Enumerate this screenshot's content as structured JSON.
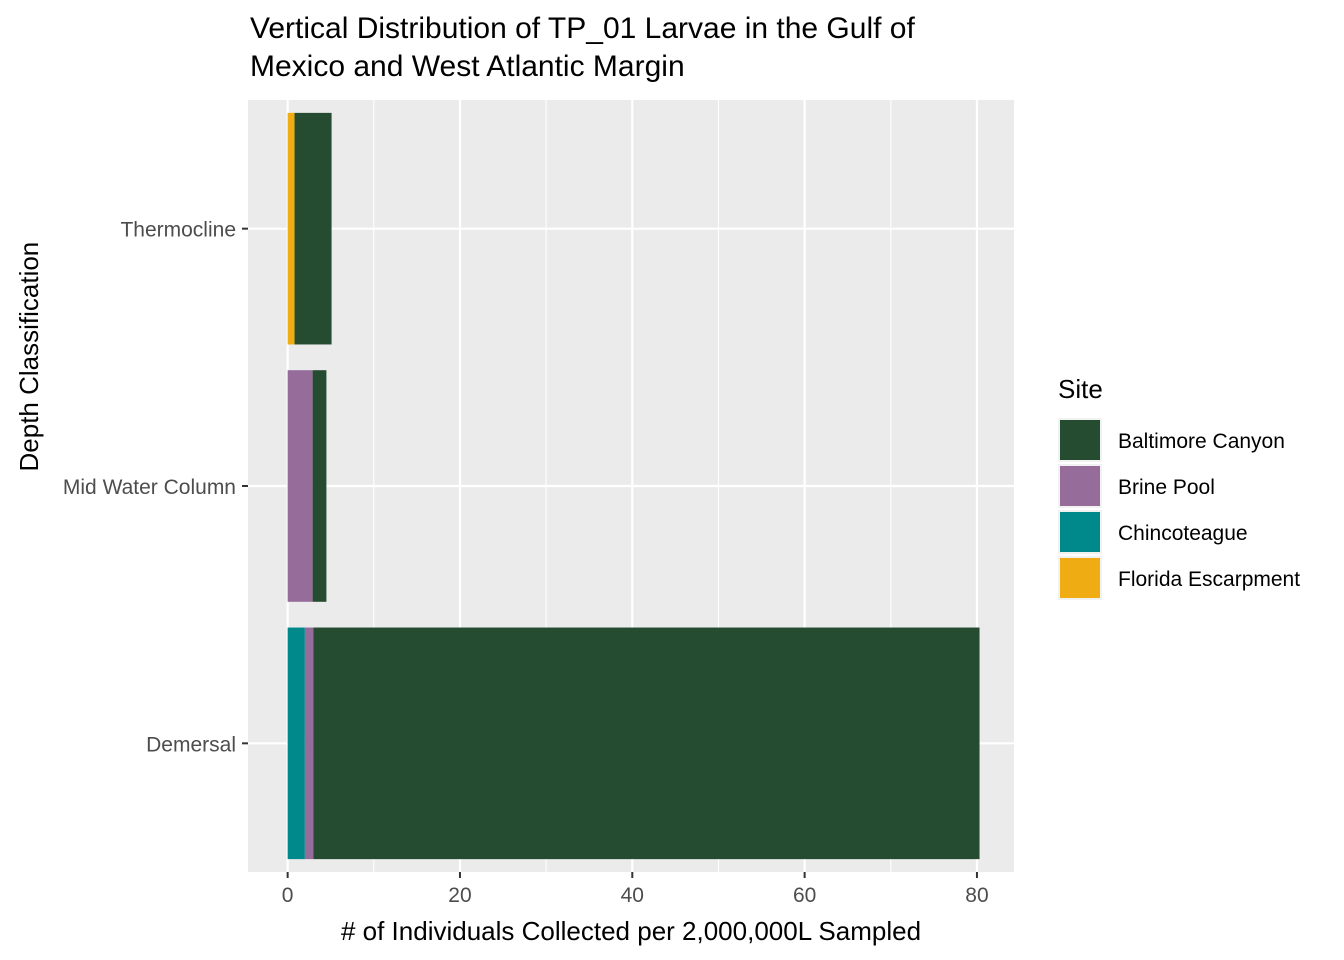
{
  "chart_data": {
    "type": "bar",
    "orientation": "horizontal",
    "stacked": true,
    "title": "Vertical Distribution of TP_01 Larvae in the Gulf of Mexico and West Atlantic Margin",
    "title_lines": [
      "Vertical Distribution of TP_01 Larvae in the Gulf of",
      "Mexico and West Atlantic Margin"
    ],
    "xlabel": "# of Individuals Collected per 2,000,000L Sampled",
    "ylabel": "Depth Classification",
    "xlim": [
      -4.6,
      84.3
    ],
    "x_ticks": [
      0,
      20,
      40,
      60,
      80
    ],
    "categories": [
      "Demersal",
      "Mid Water Column",
      "Thermocline"
    ],
    "series": [
      {
        "name": "Chincoteague",
        "color": "#00898A",
        "values": [
          2.0,
          0,
          0
        ]
      },
      {
        "name": "Brine Pool",
        "color": "#966C9B",
        "values": [
          1.0,
          2.9,
          0
        ]
      },
      {
        "name": "Florida Escarpment",
        "color": "#EFAC13",
        "values": [
          0,
          0,
          0.8
        ]
      },
      {
        "name": "Baltimore Canyon",
        "color": "#254B31",
        "values": [
          77.3,
          1.6,
          4.3
        ]
      }
    ],
    "legend": {
      "title": "Site",
      "position": "right",
      "order": [
        "Baltimore Canyon",
        "Brine Pool",
        "Chincoteague",
        "Florida Escarpment"
      ]
    },
    "grid": true,
    "colors": {
      "panel": "#EBEBEB",
      "grid": "#FFFFFF",
      "tick_text": "#4D4D4D"
    }
  }
}
